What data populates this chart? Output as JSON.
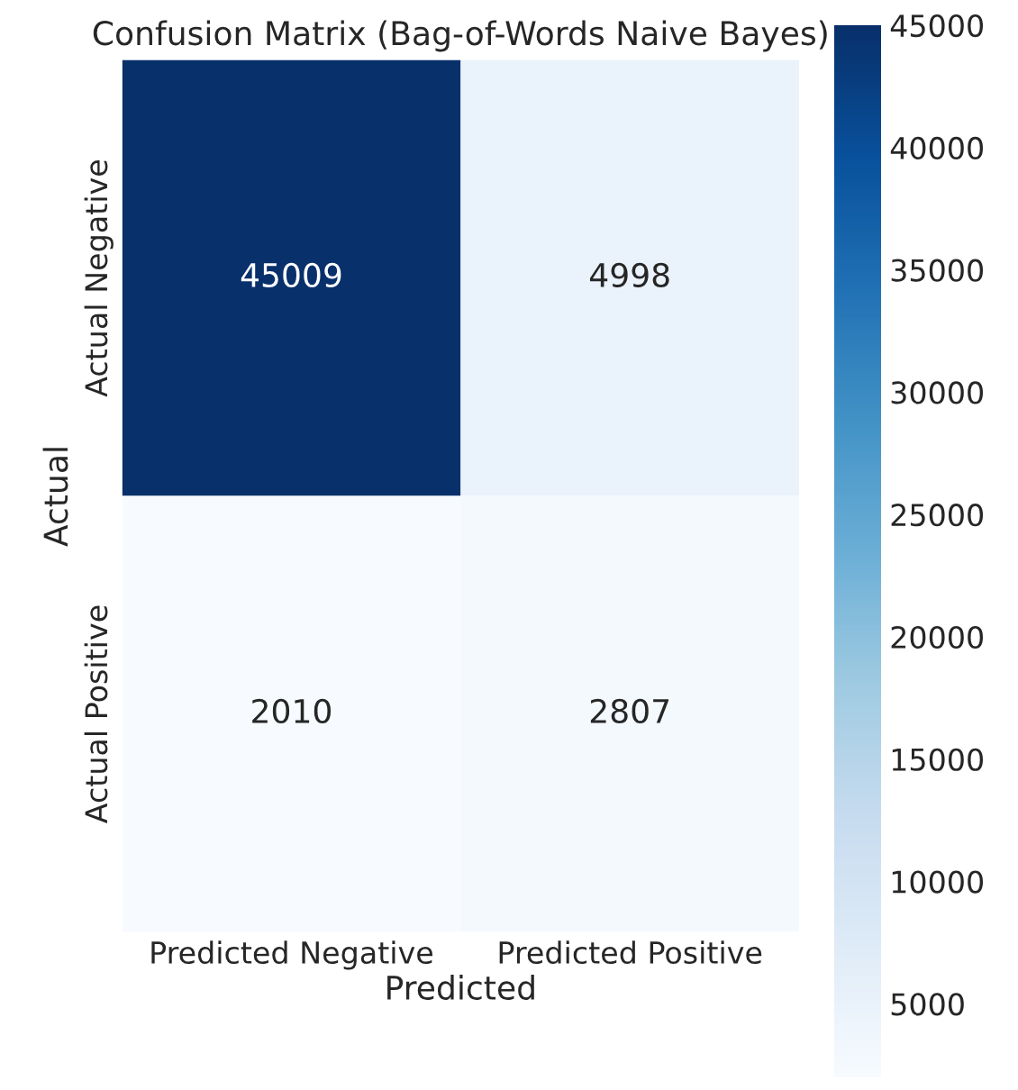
{
  "chart_data": {
    "type": "heatmap",
    "title": "Confusion Matrix (Bag-of-Words Naive Bayes)",
    "xlabel": "Predicted",
    "ylabel": "Actual",
    "categories": [
      "Predicted Negative",
      "Predicted Positive"
    ],
    "y_categories": [
      "Actual Negative",
      "Actual Positive"
    ],
    "cells": [
      [
        45009,
        4998
      ],
      [
        2010,
        2807
      ]
    ],
    "data_labels": true,
    "clim": [
      2010,
      45009
    ],
    "cticks": [
      5000,
      10000,
      15000,
      20000,
      25000,
      30000,
      35000,
      40000,
      45000
    ]
  }
}
